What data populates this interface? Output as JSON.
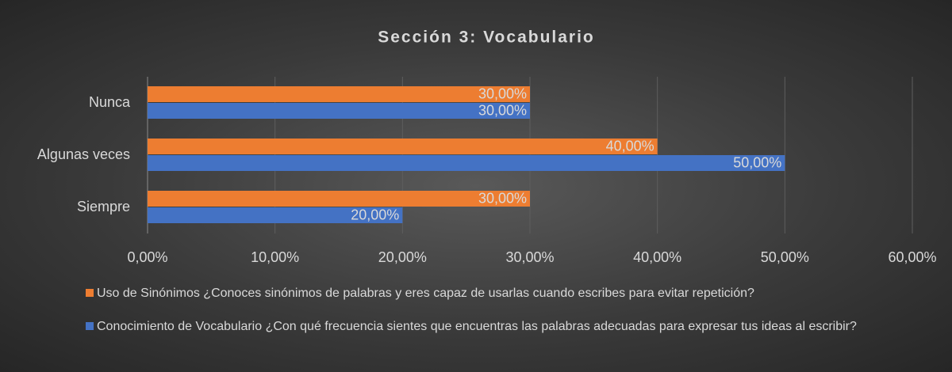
{
  "chart_data": {
    "type": "hbar",
    "title": "Sección 3: Vocabulario",
    "categories": [
      "Nunca",
      "Algunas veces",
      "Siempre"
    ],
    "series": [
      {
        "name": "Uso de Sinónimos ¿Conoces sinónimos de palabras y eres capaz de usarlas cuando escribes para evitar repetición?",
        "color": "#ed7d31",
        "values": [
          30,
          40,
          30
        ],
        "value_labels": [
          "30,00%",
          "40,00%",
          "30,00%"
        ]
      },
      {
        "name": "Conocimiento de Vocabulario ¿Con qué frecuencia sientes que encuentras las palabras adecuadas para expresar tus ideas al escribir?",
        "color": "#4472c4",
        "values": [
          30,
          50,
          20
        ],
        "value_labels": [
          "30,00%",
          "50,00%",
          "20,00%"
        ]
      }
    ],
    "xlim": [
      0,
      60
    ],
    "xticks": [
      {
        "value": 0,
        "label": "0,00%"
      },
      {
        "value": 10,
        "label": "10,00%"
      },
      {
        "value": 20,
        "label": "20,00%"
      },
      {
        "value": 30,
        "label": "30,00%"
      },
      {
        "value": 40,
        "label": "40,00%"
      },
      {
        "value": 50,
        "label": "50,00%"
      },
      {
        "value": 60,
        "label": "60,00%"
      }
    ],
    "grid": true
  }
}
